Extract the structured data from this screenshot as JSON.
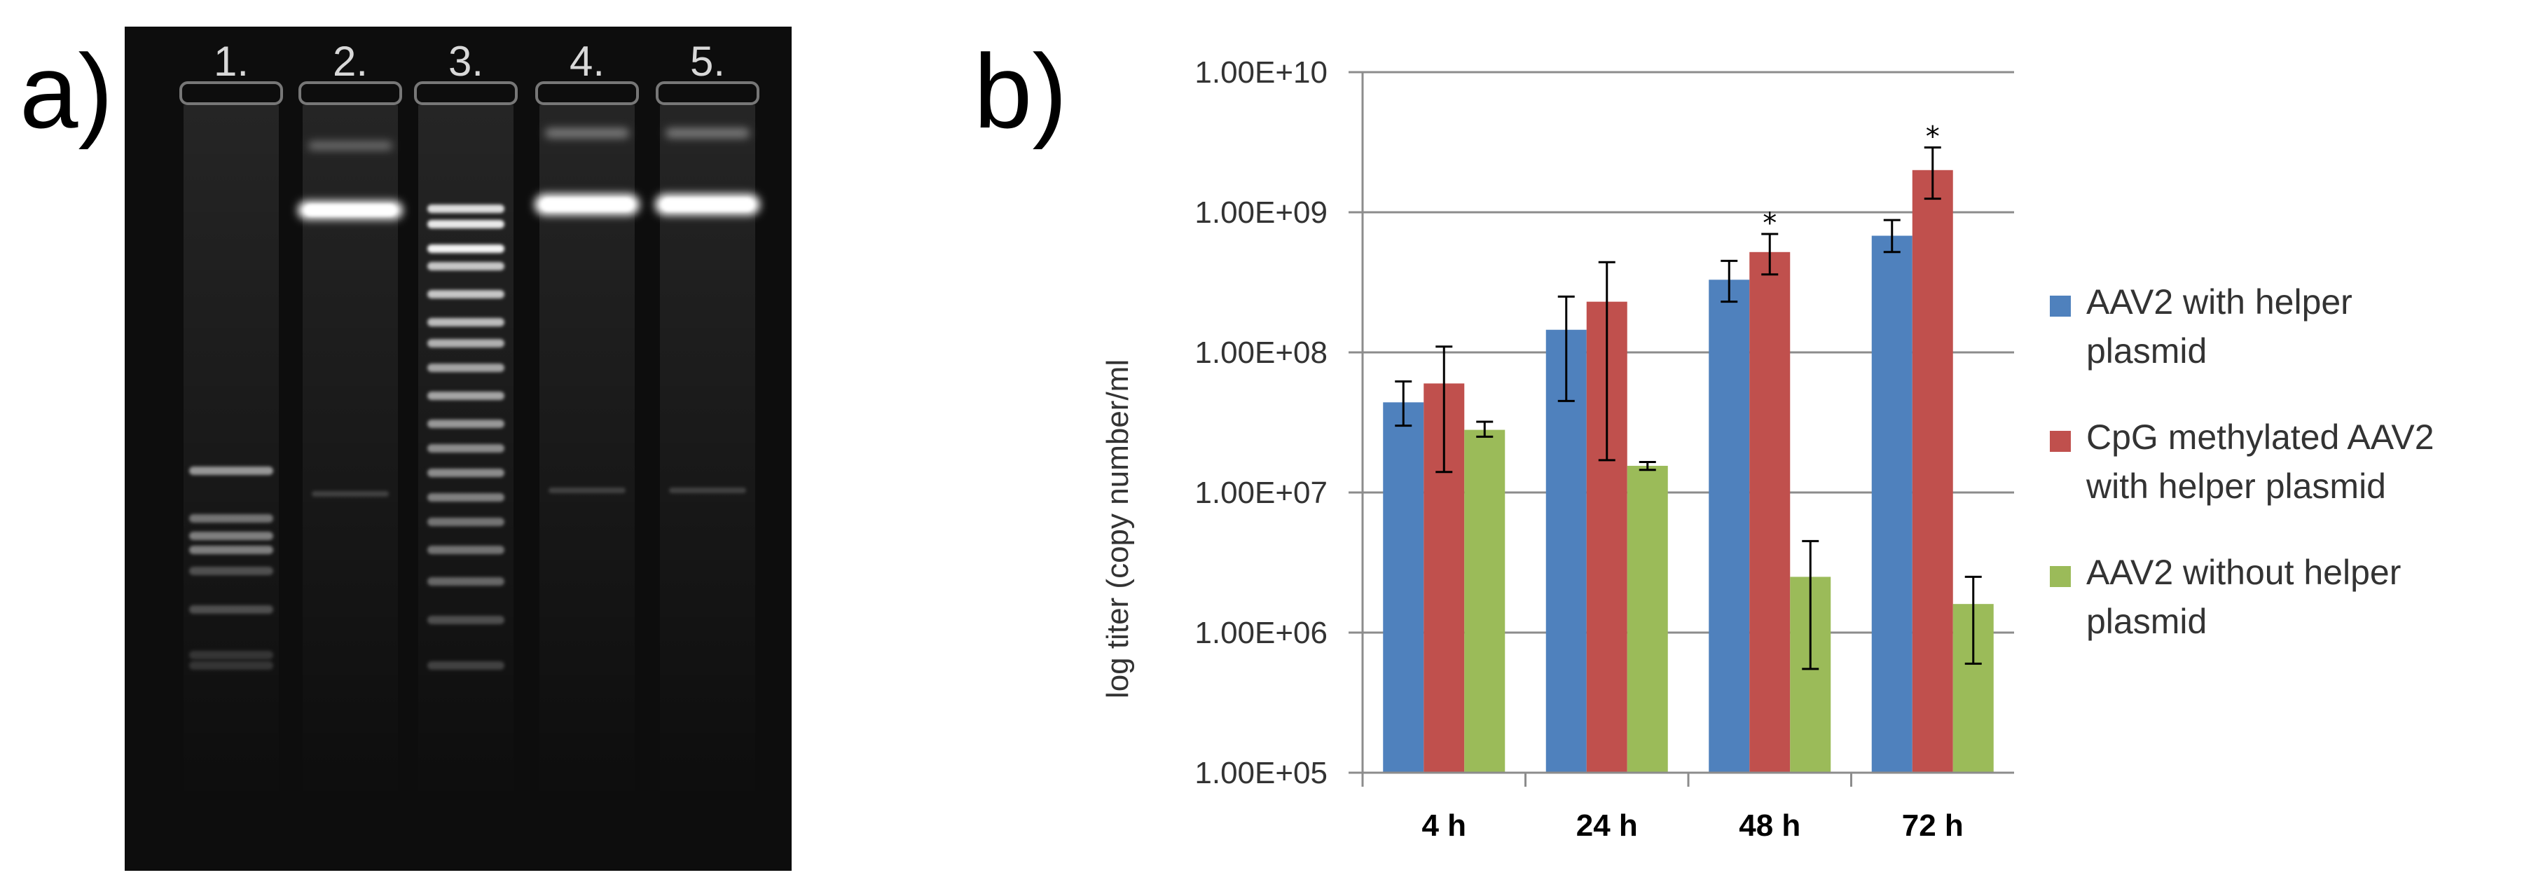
{
  "panel_a": {
    "label": "a)",
    "lanes": [
      "1.",
      "2.",
      "3.",
      "4.",
      "5."
    ]
  },
  "panel_b": {
    "label": "b)"
  },
  "colors": {
    "series_blue": "#4f81bd",
    "series_red": "#c0504d",
    "series_green": "#9bbb59",
    "gel_background": "#0d0d0d",
    "band": "#ffffff"
  },
  "chart_data": {
    "type": "bar",
    "title": "",
    "xlabel": "",
    "ylabel": "log titer (copy number/ml",
    "yscale": "log",
    "ylim": [
      100000,
      10000000000
    ],
    "yticks": [
      100000,
      1000000,
      10000000,
      100000000,
      1000000000,
      10000000000
    ],
    "ytick_labels": [
      "1.00E+05",
      "1.00E+06",
      "1.00E+07",
      "1.00E+08",
      "1.00E+09",
      "1.00E+10"
    ],
    "categories": [
      "4 h",
      "24 h",
      "48 h",
      "72 h"
    ],
    "grid": "horizontal",
    "legend_position": "right",
    "series": [
      {
        "name": "AAV2 with helper plasmid",
        "legend_lines": [
          "AAV2 with helper",
          "plasmid"
        ],
        "values": [
          44000000,
          145000000,
          330000000,
          680000000
        ],
        "err_low": [
          30000000,
          45000000,
          230000000,
          520000000
        ],
        "err_high": [
          62000000,
          250000000,
          450000000,
          880000000
        ],
        "markers": [
          "",
          "",
          "",
          ""
        ]
      },
      {
        "name": "CpG methylated AAV2 with helper plasmid",
        "legend_lines": [
          "CpG methylated AAV2",
          "with helper plasmid"
        ],
        "values": [
          60000000,
          230000000,
          520000000,
          2000000000
        ],
        "err_low": [
          14000000,
          17000000,
          360000000,
          1250000000
        ],
        "err_high": [
          110000000,
          440000000,
          700000000,
          2900000000
        ],
        "markers": [
          "",
          "",
          "*",
          "*"
        ]
      },
      {
        "name": "AAV2 without helper plasmid",
        "legend_lines": [
          "AAV2 without helper",
          "plasmid"
        ],
        "values": [
          28000000,
          15500000,
          2500000,
          1600000
        ],
        "err_low": [
          25000000,
          14500000,
          550000,
          600000
        ],
        "err_high": [
          32000000,
          16500000,
          4500000,
          2500000
        ],
        "markers": [
          "",
          "",
          "",
          ""
        ]
      }
    ]
  }
}
